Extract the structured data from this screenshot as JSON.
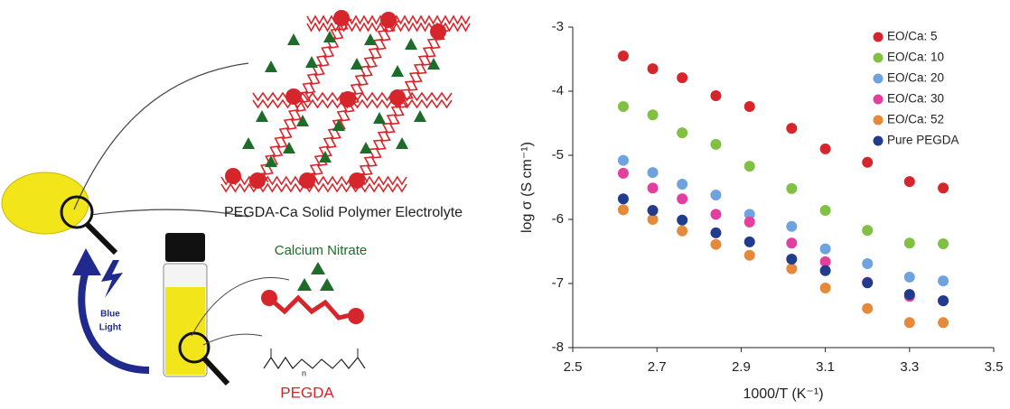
{
  "diagram": {
    "network_label": "PEGDA-Ca Solid Polymer Electrolyte",
    "salt_label": "Calcium Nitrate",
    "monomer_label": "PEGDA",
    "light_label": [
      "Blue",
      "Light"
    ],
    "repeat_subscript": "n"
  },
  "chart_data": {
    "type": "scatter",
    "x_label": "1000/T (K⁻¹)",
    "y_label": "log σ (S cm⁻¹)",
    "xlim": [
      2.5,
      3.5
    ],
    "xticks": [
      2.5,
      2.7,
      2.9,
      3.1,
      3.3,
      3.5
    ],
    "ylim": [
      -8,
      -3
    ],
    "yticks": [
      -3,
      -4,
      -5,
      -6,
      -7,
      -8
    ],
    "legend": "upper right",
    "x": [
      2.62,
      2.69,
      2.76,
      2.84,
      2.92,
      3.02,
      3.1,
      3.2,
      3.3,
      3.38
    ],
    "series": [
      {
        "name": "EO/Ca: 5",
        "color": "#d7262b",
        "values": [
          -3.45,
          -3.65,
          -3.79,
          -4.07,
          -4.24,
          -4.58,
          -4.9,
          -5.11,
          -5.41,
          -5.51
        ]
      },
      {
        "name": "EO/Ca: 10",
        "color": "#80c042",
        "values": [
          -4.24,
          -4.37,
          -4.65,
          -4.83,
          -5.17,
          -5.52,
          -5.86,
          -6.17,
          -6.37,
          -6.38
        ]
      },
      {
        "name": "EO/Ca: 20",
        "color": "#6fa3df",
        "values": [
          -5.08,
          -5.27,
          -5.45,
          -5.62,
          -5.92,
          -6.11,
          -6.46,
          -6.69,
          -6.9,
          -6.96
        ]
      },
      {
        "name": "EO/Ca: 30",
        "color": "#e23f9f",
        "values": [
          -5.28,
          -5.51,
          -5.68,
          -5.92,
          -6.04,
          -6.37,
          -6.66,
          -6.98,
          -7.2,
          -7.27
        ]
      },
      {
        "name": "EO/Ca: 52",
        "color": "#e58a3a",
        "values": [
          -5.85,
          -6.0,
          -6.18,
          -6.39,
          -6.56,
          -6.77,
          -7.07,
          -7.39,
          -7.61,
          -7.61
        ]
      },
      {
        "name": "Pure PEGDA",
        "color": "#213c8c",
        "values": [
          -5.68,
          -5.86,
          -6.01,
          -6.21,
          -6.35,
          -6.62,
          -6.8,
          -6.99,
          -7.17,
          -7.27
        ]
      }
    ]
  }
}
